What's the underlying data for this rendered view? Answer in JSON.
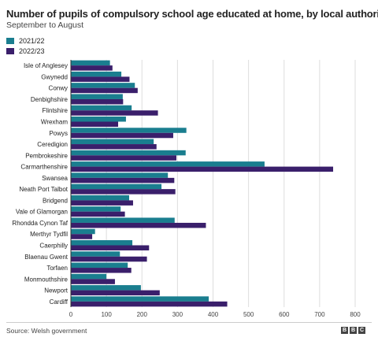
{
  "colors": {
    "series_2021": "#1a7e8f",
    "series_2022": "#3a1f6b",
    "grid": "#dddddd",
    "axis": "#333333"
  },
  "footer": {
    "source": "Source: Welsh government",
    "logo_letters": [
      "B",
      "B",
      "C"
    ]
  },
  "chart_data": {
    "type": "bar",
    "orientation": "horizontal",
    "title": "Number of pupils of compulsory school age educated at home, by local authority",
    "subtitle": "September to August",
    "categories": [
      "Isle of Anglesey",
      "Gwynedd",
      "Conwy",
      "Denbighshire",
      "Flintshire",
      "Wrexham",
      "Powys",
      "Ceredigion",
      "Pembrokeshire",
      "Carmarthenshire",
      "Swansea",
      "Neath Port Talbot",
      "Bridgend",
      "Vale of Glamorgan",
      "Rhondda Cynon Taf",
      "Merthyr Tydfil",
      "Caerphilly",
      "Blaenau Gwent",
      "Torfaen",
      "Monmouthshire",
      "Newport",
      "Cardiff"
    ],
    "series": [
      {
        "name": "2021/22",
        "values": [
          110,
          142,
          180,
          146,
          171,
          155,
          325,
          233,
          323,
          545,
          273,
          255,
          164,
          140,
          292,
          68,
          173,
          138,
          160,
          100,
          197,
          388
        ]
      },
      {
        "name": "2022/23",
        "values": [
          117,
          165,
          188,
          147,
          245,
          133,
          288,
          241,
          297,
          738,
          291,
          294,
          175,
          152,
          380,
          60,
          220,
          214,
          170,
          124,
          250,
          440
        ]
      }
    ],
    "xlim": [
      0,
      800
    ],
    "xticks": [
      0,
      100,
      200,
      300,
      400,
      500,
      600,
      700,
      800
    ],
    "grid": true,
    "legend": "top-left"
  }
}
